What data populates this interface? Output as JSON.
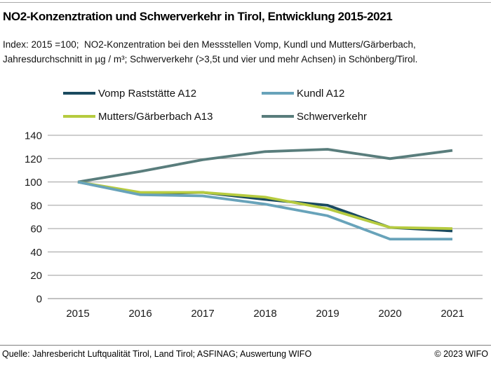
{
  "header": {
    "title": "NO2-Konzenztration und Schwerverkehr in Tirol, Entwicklung 2015-2021",
    "subtitle_lines": [
      "Index: 2015 =100;  NO2-Konzentration bei den Messstellen Vomp, Kundl und Mutters/Gärberbach,",
      "Jahresdurchschnitt in µg / m³; Schwerverkehr (>3,5t und vier und mehr Achsen) in Schönberg/Tirol."
    ]
  },
  "legend": {
    "items": [
      {
        "label": "Vomp Raststätte A12",
        "color": "#1a4a5f"
      },
      {
        "label": "Kundl A12",
        "color": "#68a3ba"
      },
      {
        "label": "Mutters/Gärberbach A13",
        "color": "#b6cb3f"
      },
      {
        "label": "Schwerverkehr",
        "color": "#597d7c"
      }
    ]
  },
  "chart_data": {
    "type": "line",
    "title": "NO2-Konzenztration und Schwerverkehr in Tirol, Entwicklung 2015-2021",
    "x": [
      2015,
      2016,
      2017,
      2018,
      2019,
      2020,
      2021
    ],
    "series": [
      {
        "name": "Schwerverkehr",
        "color": "#597d7c",
        "values": [
          100,
          109,
          119,
          126,
          128,
          120,
          127
        ]
      },
      {
        "name": "Vomp Raststätte A12",
        "color": "#1a4a5f",
        "values": [
          100,
          90,
          91,
          85,
          80,
          61,
          58
        ]
      },
      {
        "name": "Mutters/Gärberbach A13",
        "color": "#b6cb3f",
        "values": [
          100,
          91,
          91,
          87,
          77,
          61,
          60
        ]
      },
      {
        "name": "Kundl A12",
        "color": "#68a3ba",
        "values": [
          100,
          89,
          88,
          81,
          71,
          51,
          51
        ]
      }
    ],
    "ylim": [
      0,
      140
    ],
    "yticks": [
      0,
      20,
      40,
      60,
      80,
      100,
      120,
      140
    ],
    "grid": true,
    "legend_position": "top",
    "grid_color": "#9c9c9c",
    "zero_line_color": "#858585"
  },
  "footer": {
    "source": "Quelle: Jahresbericht Luftqualität Tirol, Land Tirol; ASFINAG; Auswertung WIFO",
    "copyright": "© 2023 WIFO"
  }
}
